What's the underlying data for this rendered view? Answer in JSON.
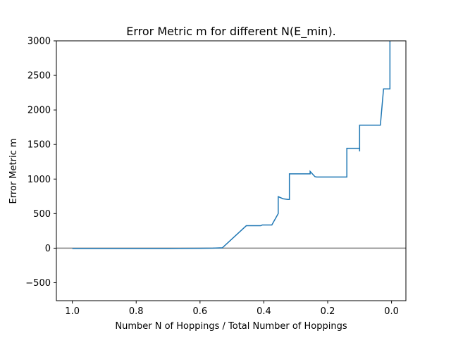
{
  "chart_data": {
    "type": "line",
    "title": "Error Metric m for different N(E_min).",
    "xlabel": "Number N of Hoppings / Total Number of Hoppings",
    "ylabel": "Error Metric m",
    "xlim": [
      1.05,
      -0.045
    ],
    "ylim": [
      -760,
      3000
    ],
    "x_ticks": [
      1.0,
      0.8,
      0.6,
      0.4,
      0.2,
      0.0
    ],
    "x_tick_labels": [
      "1.0",
      "0.8",
      "0.6",
      "0.4",
      "0.2",
      "0.0"
    ],
    "y_ticks": [
      -500,
      0,
      500,
      1000,
      1500,
      2000,
      2500,
      3000
    ],
    "y_tick_labels": [
      "−500",
      "0",
      "500",
      "1000",
      "1500",
      "2000",
      "2500",
      "3000"
    ],
    "grid": false,
    "reference_line": {
      "y": 0,
      "color": "#808080"
    },
    "series": [
      {
        "color": "#1f77b4",
        "x": [
          1.0,
          0.9,
          0.8,
          0.7,
          0.6,
          0.56,
          0.53,
          0.455,
          0.425,
          0.41,
          0.405,
          0.375,
          0.355,
          0.355,
          0.34,
          0.325,
          0.32,
          0.32,
          0.255,
          0.255,
          0.245,
          0.24,
          0.235,
          0.21,
          0.14,
          0.14,
          0.1,
          0.1,
          0.1,
          0.1,
          0.035,
          0.025,
          0.005,
          0.005
        ],
        "y": [
          -5,
          -5,
          -5,
          -5,
          -2,
          0,
          5,
          325,
          325,
          325,
          335,
          335,
          500,
          745,
          715,
          705,
          705,
          1075,
          1075,
          1110,
          1060,
          1035,
          1030,
          1030,
          1030,
          1445,
          1445,
          1400,
          1445,
          1780,
          1780,
          2305,
          2305,
          3000
        ]
      }
    ]
  }
}
